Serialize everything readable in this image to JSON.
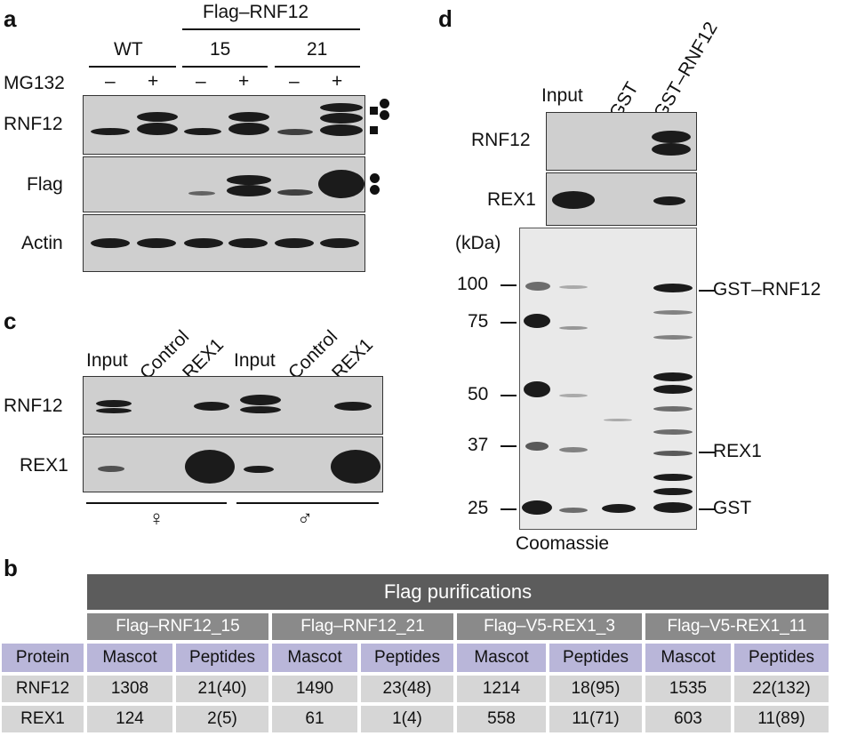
{
  "panel_a": {
    "letter": "a",
    "header_group": "Flag–RNF12",
    "groups": [
      "WT",
      "15",
      "21"
    ],
    "mg132_label": "MG132",
    "mg132_states": [
      "–",
      "+",
      "–",
      "+",
      "–",
      "+"
    ],
    "rows": [
      "RNF12",
      "Flag",
      "Actin"
    ]
  },
  "panel_c": {
    "letter": "c",
    "lanes": [
      "Input",
      "Control",
      "REX1",
      "Input",
      "Control",
      "REX1"
    ],
    "rows": [
      "RNF12",
      "REX1"
    ],
    "female": "♀",
    "male": "♂"
  },
  "panel_d": {
    "letter": "d",
    "lanes": [
      "Input",
      "GST",
      "GST–RNF12"
    ],
    "rows": [
      "RNF12",
      "REX1"
    ],
    "kda_label": "(kDa)",
    "markers": [
      "100",
      "75",
      "50",
      "37",
      "25"
    ],
    "right_labels": [
      "GST–RNF12",
      "REX1",
      "GST"
    ],
    "stain_label": "Coomassie"
  },
  "panel_b": {
    "letter": "b",
    "title": "Flag purifications",
    "groups": [
      "Flag–RNF12_15",
      "Flag–RNF12_21",
      "Flag–V5-REX1_3",
      "Flag–V5-REX1_11"
    ],
    "protein_header": "Protein",
    "col_headers": [
      "Mascot",
      "Peptides",
      "Mascot",
      "Peptides",
      "Mascot",
      "Peptides",
      "Mascot",
      "Peptides"
    ],
    "rows": [
      {
        "protein": "RNF12",
        "values": [
          "1308",
          "21(40)",
          "1490",
          "23(48)",
          "1214",
          "18(95)",
          "1535",
          "22(132)"
        ]
      },
      {
        "protein": "REX1",
        "values": [
          "124",
          "2(5)",
          "61",
          "1(4)",
          "558",
          "11(71)",
          "603",
          "11(89)"
        ]
      }
    ]
  }
}
